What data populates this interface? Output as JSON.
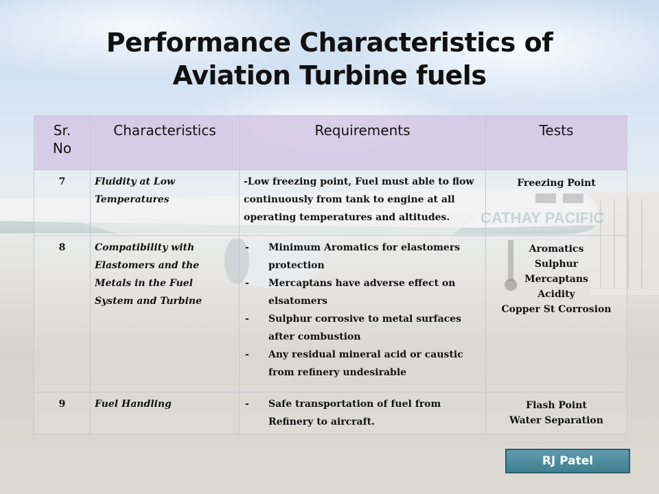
{
  "slide": {
    "title_line1": "Performance Characteristics of",
    "title_line2": "Aviation Turbine fuels",
    "author": "RJ Patel"
  },
  "table": {
    "headers": {
      "sr_line1": "Sr.",
      "sr_line2": "No",
      "characteristics": "Characteristics",
      "requirements": "Requirements",
      "tests": "Tests"
    },
    "rows": [
      {
        "sr": "7",
        "characteristic": "Fluidity at Low Temperatures",
        "requirement_text": "-Low freezing point, Fuel must able to flow continuously from tank to engine at all operating temperatures and altitudes.",
        "tests": [
          "Freezing Point"
        ]
      },
      {
        "sr": "8",
        "characteristic": "Compatibility with Elastomers   and the Metals in the Fuel System and Turbine",
        "requirements": [
          "Minimum Aromatics for elastomers protection",
          "Mercaptans have adverse effect on elsatomers",
          "Sulphur corrosive to metal surfaces after combustion",
          "Any residual mineral acid or caustic from refinery undesirable"
        ],
        "tests": [
          "Aromatics",
          "Sulphur",
          "Mercaptans",
          "Acidity",
          "Copper St Corrosion"
        ]
      },
      {
        "sr": "9",
        "characteristic": "Fuel Handling",
        "requirements": [
          "Safe transportation of fuel from Refinery to aircraft."
        ],
        "tests": [
          "Flash Point",
          "Water Separation"
        ]
      }
    ]
  },
  "background": {
    "sky_color": "#a9c7e6",
    "ground_color": "#bdb8b0",
    "aircraft_livery_text": "CATHAY PACIFIC"
  }
}
